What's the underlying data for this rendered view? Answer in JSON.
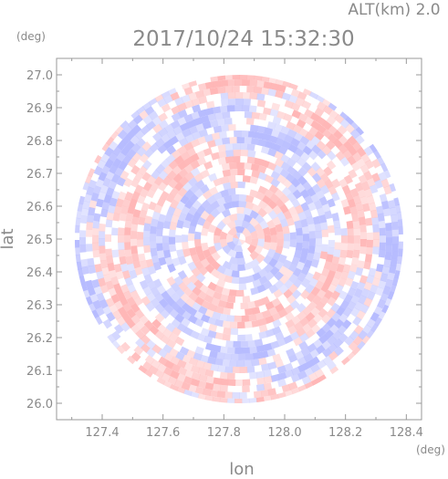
{
  "chart_data": {
    "type": "heatmap",
    "title": "2017/10/24 15:32:30",
    "subtitle": "ALT(km) 2.0",
    "xlabel": "lon",
    "ylabel": "lat",
    "x_unit": "(deg)",
    "y_unit": "(deg)",
    "xlim": [
      127.25,
      128.45
    ],
    "ylim": [
      25.95,
      27.05
    ],
    "x_ticks": [
      "127.4",
      "127.6",
      "127.8",
      "128.0",
      "128.2",
      "128.4"
    ],
    "y_ticks": [
      "26.0",
      "26.1",
      "26.2",
      "26.3",
      "26.4",
      "26.5",
      "26.6",
      "26.7",
      "26.8",
      "26.9",
      "27.0"
    ],
    "center": {
      "lon": 127.85,
      "lat": 26.5
    },
    "radius_deg": 0.54,
    "grid": false,
    "colors": {
      "positive": "#ffb3b3",
      "negative": "#b3b8ff",
      "axis": "#9a9a9a"
    }
  }
}
